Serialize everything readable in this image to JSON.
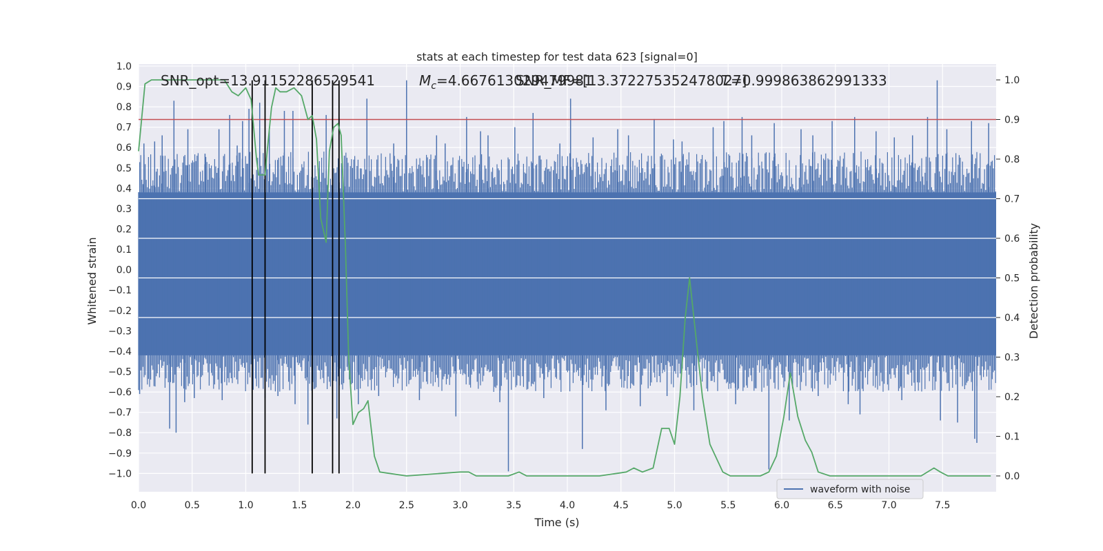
{
  "chart_data": {
    "type": "line",
    "title": "stats at each timestep for test data 623 [signal=0]",
    "xlabel": "Time (s)",
    "ylabel_left": "Whitened strain",
    "ylabel_right": "Detection probability",
    "xlim": [
      0.0,
      8.0
    ],
    "ylim_left": [
      -1.09,
      1.01
    ],
    "ylim_right": [
      -0.04,
      1.04
    ],
    "x_ticks": [
      0.0,
      0.5,
      1.0,
      1.5,
      2.0,
      2.5,
      3.0,
      3.5,
      4.0,
      4.5,
      5.0,
      5.5,
      6.0,
      6.5,
      7.0,
      7.5
    ],
    "x_tick_labels": [
      "0.0",
      "0.5",
      "1.0",
      "1.5",
      "2.0",
      "2.5",
      "3.0",
      "3.5",
      "4.0",
      "4.5",
      "5.0",
      "5.5",
      "6.0",
      "6.5",
      "7.0",
      "7.5"
    ],
    "y_left_ticks": [
      1.0,
      0.9,
      0.8,
      0.7,
      0.6,
      0.5,
      0.4,
      0.3,
      0.2,
      0.1,
      0.0,
      -0.1,
      -0.2,
      -0.3,
      -0.4,
      -0.5,
      -0.6,
      -0.7,
      -0.8,
      -0.9,
      -1.0
    ],
    "y_left_tick_labels": [
      "1.0",
      "0.9",
      "0.8",
      "0.7",
      "0.6",
      "0.5",
      "0.4",
      "0.3",
      "0.2",
      "0.1",
      "0.0",
      "−0.1",
      "−0.2",
      "−0.3",
      "−0.4",
      "−0.5",
      "−0.6",
      "−0.7",
      "−0.8",
      "−0.9",
      "−1.0"
    ],
    "y_right_ticks": [
      1.0,
      0.9,
      0.8,
      0.7,
      0.6,
      0.5,
      0.4,
      0.3,
      0.2,
      0.1,
      0.0
    ],
    "y_right_tick_labels": [
      "1.0",
      "0.9",
      "0.8",
      "0.7",
      "0.6",
      "0.5",
      "0.4",
      "0.3",
      "0.2",
      "0.1",
      "0.0"
    ],
    "annotations": {
      "snr_opt": "SNR_opt=13.91152286529541",
      "mc_symbol": "M",
      "mc_sub": "c",
      "mc_value": "=4.667613029479981",
      "snr_mf": "SNR_MF=[13.372275352478027]",
      "t_value": "=0.999863862991333",
      "t_symbol": "T"
    },
    "threshold": {
      "value": 0.9,
      "axis": "right",
      "color": "#c44e52"
    },
    "vertical_markers": [
      1.06,
      1.18,
      1.62,
      1.81,
      1.87
    ],
    "vertical_marker_range_left": [
      -1.0,
      0.93
    ],
    "strain_envelope": {
      "series": "waveform with noise",
      "core_top": 0.38,
      "core_bottom": -0.42,
      "color": "#4c72b0"
    },
    "strain_spikes": [
      [
        0.01,
        -0.61
      ],
      [
        0.05,
        0.62
      ],
      [
        0.15,
        0.63
      ],
      [
        0.22,
        0.66
      ],
      [
        0.29,
        -0.78
      ],
      [
        0.33,
        0.83
      ],
      [
        0.35,
        -0.8
      ],
      [
        0.43,
        -0.65
      ],
      [
        0.46,
        0.69
      ],
      [
        0.52,
        -0.63
      ],
      [
        0.62,
        0.57
      ],
      [
        0.75,
        0.69
      ],
      [
        0.78,
        -0.64
      ],
      [
        0.85,
        0.76
      ],
      [
        0.92,
        0.61
      ],
      [
        0.97,
        0.73
      ],
      [
        1.03,
        0.79
      ],
      [
        1.06,
        -0.55
      ],
      [
        1.13,
        0.82
      ],
      [
        1.18,
        -0.63
      ],
      [
        1.22,
        0.7
      ],
      [
        1.3,
        -0.62
      ],
      [
        1.36,
        0.78
      ],
      [
        1.44,
        0.78
      ],
      [
        1.46,
        -0.66
      ],
      [
        1.58,
        -0.76
      ],
      [
        1.62,
        0.67
      ],
      [
        1.75,
        0.76
      ],
      [
        1.85,
        -0.73
      ],
      [
        1.92,
        0.56
      ],
      [
        2.05,
        -0.66
      ],
      [
        2.13,
        0.84
      ],
      [
        2.24,
        -0.62
      ],
      [
        2.38,
        0.62
      ],
      [
        2.5,
        0.93
      ],
      [
        2.62,
        -0.64
      ],
      [
        2.78,
        0.66
      ],
      [
        2.86,
        0.62
      ],
      [
        2.96,
        -0.72
      ],
      [
        3.06,
        0.75
      ],
      [
        3.19,
        0.68
      ],
      [
        3.26,
        0.66
      ],
      [
        3.37,
        -0.65
      ],
      [
        3.45,
        -0.99
      ],
      [
        3.51,
        0.7
      ],
      [
        3.68,
        0.77
      ],
      [
        3.78,
        -0.63
      ],
      [
        3.93,
        0.62
      ],
      [
        4.03,
        0.84
      ],
      [
        4.14,
        -0.88
      ],
      [
        4.24,
        0.65
      ],
      [
        4.36,
        -0.69
      ],
      [
        4.47,
        0.69
      ],
      [
        4.57,
        0.66
      ],
      [
        4.68,
        -0.67
      ],
      [
        4.81,
        0.74
      ],
      [
        4.93,
        -0.62
      ],
      [
        4.99,
        0.64
      ],
      [
        5.07,
        0.63
      ],
      [
        5.18,
        -0.69
      ],
      [
        5.36,
        0.7
      ],
      [
        5.46,
        0.73
      ],
      [
        5.57,
        -0.66
      ],
      [
        5.63,
        0.75
      ],
      [
        5.72,
        0.66
      ],
      [
        5.88,
        -0.98
      ],
      [
        5.93,
        0.72
      ],
      [
        6.07,
        -0.74
      ],
      [
        6.18,
        0.69
      ],
      [
        6.29,
        0.66
      ],
      [
        6.34,
        -0.62
      ],
      [
        6.47,
        0.73
      ],
      [
        6.62,
        -0.66
      ],
      [
        6.68,
        0.75
      ],
      [
        6.73,
        -0.71
      ],
      [
        6.88,
        0.68
      ],
      [
        7.05,
        0.65
      ],
      [
        7.12,
        -0.64
      ],
      [
        7.22,
        0.66
      ],
      [
        7.36,
        0.75
      ],
      [
        7.45,
        0.93
      ],
      [
        7.48,
        -0.74
      ],
      [
        7.54,
        0.69
      ],
      [
        7.64,
        -0.75
      ],
      [
        7.77,
        0.73
      ],
      [
        7.8,
        -0.83
      ],
      [
        7.82,
        -0.85
      ],
      [
        7.93,
        0.72
      ]
    ],
    "detection_probability": {
      "color": "#55a868",
      "x": [
        0.0,
        0.06,
        0.12,
        0.2,
        0.4,
        0.6,
        0.8,
        0.87,
        0.93,
        1.0,
        1.05,
        1.1,
        1.12,
        1.18,
        1.2,
        1.24,
        1.28,
        1.32,
        1.38,
        1.45,
        1.52,
        1.58,
        1.62,
        1.66,
        1.7,
        1.75,
        1.78,
        1.82,
        1.86,
        1.89,
        1.93,
        1.96,
        2.0,
        2.05,
        2.1,
        2.14,
        2.2,
        2.25,
        2.5,
        3.0,
        3.08,
        3.15,
        3.3,
        3.45,
        3.55,
        3.62,
        4.0,
        4.3,
        4.55,
        4.62,
        4.7,
        4.8,
        4.88,
        4.95,
        5.0,
        5.05,
        5.1,
        5.14,
        5.2,
        5.26,
        5.33,
        5.45,
        5.52,
        5.6,
        5.8,
        5.88,
        5.95,
        6.02,
        6.08,
        6.15,
        6.22,
        6.28,
        6.34,
        6.45,
        7.0,
        7.15,
        7.3,
        7.42,
        7.48,
        7.55,
        7.75,
        7.95
      ],
      "y": [
        0.82,
        0.99,
        1.0,
        1.0,
        1.0,
        1.0,
        1.0,
        0.97,
        0.96,
        0.98,
        0.95,
        0.8,
        0.76,
        0.76,
        0.82,
        0.93,
        0.98,
        0.97,
        0.97,
        0.98,
        0.96,
        0.9,
        0.91,
        0.85,
        0.65,
        0.59,
        0.82,
        0.88,
        0.89,
        0.86,
        0.58,
        0.3,
        0.13,
        0.16,
        0.17,
        0.19,
        0.05,
        0.01,
        0.0,
        0.01,
        0.01,
        0.0,
        0.0,
        0.0,
        0.01,
        0.0,
        0.0,
        0.0,
        0.01,
        0.02,
        0.01,
        0.02,
        0.12,
        0.12,
        0.08,
        0.2,
        0.4,
        0.5,
        0.35,
        0.2,
        0.08,
        0.01,
        0.0,
        0.0,
        0.0,
        0.01,
        0.05,
        0.15,
        0.26,
        0.15,
        0.09,
        0.06,
        0.01,
        0.0,
        0.0,
        0.0,
        0.0,
        0.02,
        0.01,
        0.0,
        0.0,
        0.0
      ]
    },
    "legend": {
      "entries": [
        "waveform with noise"
      ],
      "placement": "lower-right"
    },
    "colors": {
      "background": "#eaeaf2",
      "grid": "#ffffff",
      "strain": "#4c72b0",
      "probability": "#55a868",
      "threshold": "#c44e52",
      "markers": "#000000"
    }
  }
}
